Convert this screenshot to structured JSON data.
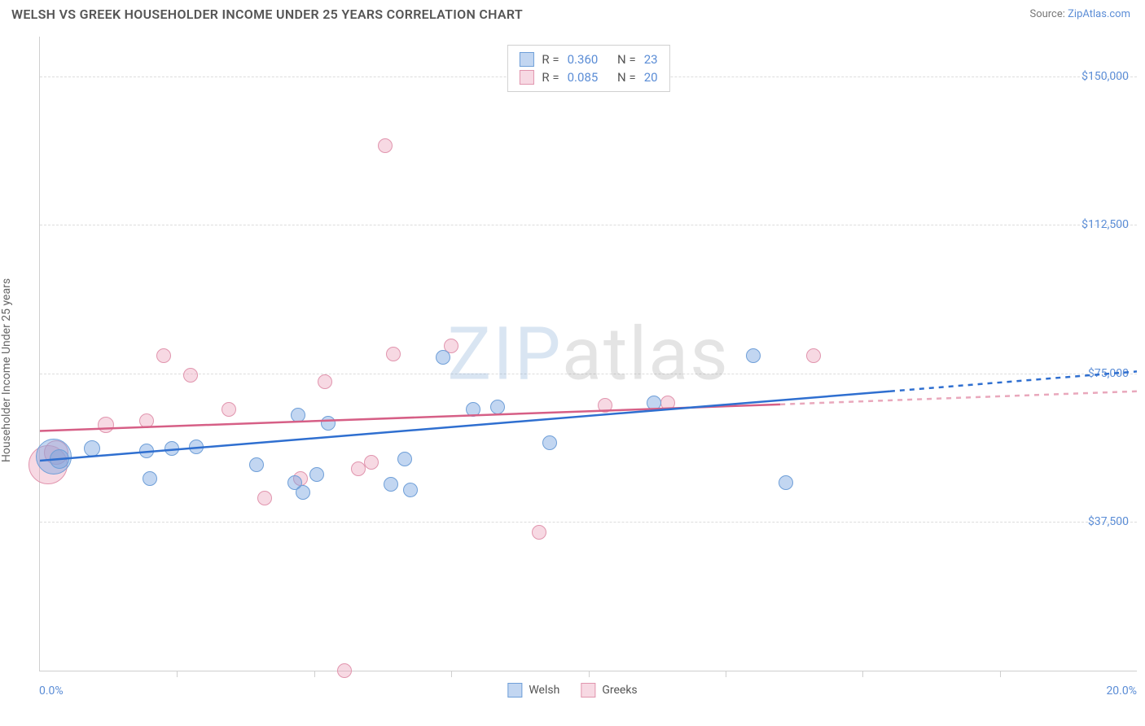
{
  "header": {
    "title": "WELSH VS GREEK HOUSEHOLDER INCOME UNDER 25 YEARS CORRELATION CHART",
    "source_prefix": "Source: ",
    "source_name": "ZipAtlas.com"
  },
  "axes": {
    "y_label": "Householder Income Under 25 years",
    "x_min_label": "0.0%",
    "x_max_label": "20.0%",
    "x_min": 0.0,
    "x_max": 20.0,
    "y_min": 0,
    "y_max": 160000,
    "y_ticks": [
      {
        "value": 37500,
        "label": "$37,500"
      },
      {
        "value": 75000,
        "label": "$75,000"
      },
      {
        "value": 112500,
        "label": "$112,500"
      },
      {
        "value": 150000,
        "label": "$150,000"
      }
    ],
    "x_tick_step": 2.5,
    "grid_color": "#dddddd",
    "border_color": "#cfcfcf",
    "tick_label_color": "#5b8dd6",
    "axis_label_color": "#666666",
    "background_color": "#ffffff"
  },
  "watermark": {
    "text_a": "ZIP",
    "text_b": "atlas"
  },
  "series": {
    "welsh": {
      "label": "Welsh",
      "fill": "rgba(120,165,225,0.45)",
      "stroke": "#6f9fd8",
      "trend_color": "#2f6fd0",
      "trend_dash_color": "#2f6fd0",
      "stats": {
        "R_label": "R =",
        "R": "0.360",
        "N_label": "N =",
        "N": "23"
      },
      "trend": {
        "x1": 0.0,
        "y1": 53000,
        "x2_solid": 15.5,
        "y2_solid": 70500,
        "x2_dash": 20.0,
        "y2_dash": 75500
      },
      "points": [
        {
          "x": 0.25,
          "y": 54000,
          "r": 22
        },
        {
          "x": 0.35,
          "y": 53500,
          "r": 12
        },
        {
          "x": 0.95,
          "y": 56000,
          "r": 10
        },
        {
          "x": 1.95,
          "y": 55500,
          "r": 9
        },
        {
          "x": 2.4,
          "y": 56000,
          "r": 9
        },
        {
          "x": 2.85,
          "y": 56500,
          "r": 9
        },
        {
          "x": 2.0,
          "y": 48500,
          "r": 9
        },
        {
          "x": 3.95,
          "y": 52000,
          "r": 9
        },
        {
          "x": 4.65,
          "y": 47500,
          "r": 9
        },
        {
          "x": 4.8,
          "y": 45000,
          "r": 9
        },
        {
          "x": 4.7,
          "y": 64500,
          "r": 9
        },
        {
          "x": 5.05,
          "y": 49500,
          "r": 9
        },
        {
          "x": 5.25,
          "y": 62500,
          "r": 9
        },
        {
          "x": 6.4,
          "y": 47000,
          "r": 9
        },
        {
          "x": 6.65,
          "y": 53500,
          "r": 9
        },
        {
          "x": 6.75,
          "y": 45500,
          "r": 9
        },
        {
          "x": 7.9,
          "y": 66000,
          "r": 9
        },
        {
          "x": 7.35,
          "y": 79000,
          "r": 9
        },
        {
          "x": 8.35,
          "y": 66500,
          "r": 9
        },
        {
          "x": 9.3,
          "y": 57500,
          "r": 9
        },
        {
          "x": 11.2,
          "y": 67500,
          "r": 9
        },
        {
          "x": 13.0,
          "y": 79500,
          "r": 9
        },
        {
          "x": 13.6,
          "y": 47500,
          "r": 9
        }
      ]
    },
    "greeks": {
      "label": "Greeks",
      "fill": "rgba(235,160,185,0.40)",
      "stroke": "#e195ae",
      "trend_color": "#d65f86",
      "trend_dash_color": "#e9a8bc",
      "stats": {
        "R_label": "R =",
        "R": "0.085",
        "N_label": "N =",
        "N": "20"
      },
      "trend": {
        "x1": 0.0,
        "y1": 60500,
        "x2_solid": 13.5,
        "y2_solid": 67200,
        "x2_dash": 20.0,
        "y2_dash": 70500
      },
      "points": [
        {
          "x": 0.15,
          "y": 52000,
          "r": 24
        },
        {
          "x": 0.3,
          "y": 55000,
          "r": 15
        },
        {
          "x": 1.2,
          "y": 62000,
          "r": 10
        },
        {
          "x": 1.95,
          "y": 63000,
          "r": 9
        },
        {
          "x": 2.25,
          "y": 79500,
          "r": 9
        },
        {
          "x": 2.75,
          "y": 74500,
          "r": 9
        },
        {
          "x": 3.45,
          "y": 66000,
          "r": 9
        },
        {
          "x": 4.1,
          "y": 43500,
          "r": 9
        },
        {
          "x": 4.75,
          "y": 48500,
          "r": 9
        },
        {
          "x": 5.2,
          "y": 73000,
          "r": 9
        },
        {
          "x": 5.8,
          "y": 51000,
          "r": 9
        },
        {
          "x": 5.55,
          "y": 0,
          "r": 9
        },
        {
          "x": 6.3,
          "y": 132500,
          "r": 9
        },
        {
          "x": 6.45,
          "y": 80000,
          "r": 9
        },
        {
          "x": 7.5,
          "y": 82000,
          "r": 9
        },
        {
          "x": 9.1,
          "y": 35000,
          "r": 9
        },
        {
          "x": 10.3,
          "y": 67000,
          "r": 9
        },
        {
          "x": 11.45,
          "y": 67500,
          "r": 9
        },
        {
          "x": 14.1,
          "y": 79500,
          "r": 9
        },
        {
          "x": 6.05,
          "y": 52500,
          "r": 9
        }
      ]
    }
  },
  "style": {
    "title_color": "#555555",
    "title_fontsize": 16,
    "legend_border": "#d0d0d0",
    "point_border_width": 1.5,
    "trend_width": 2.5
  }
}
